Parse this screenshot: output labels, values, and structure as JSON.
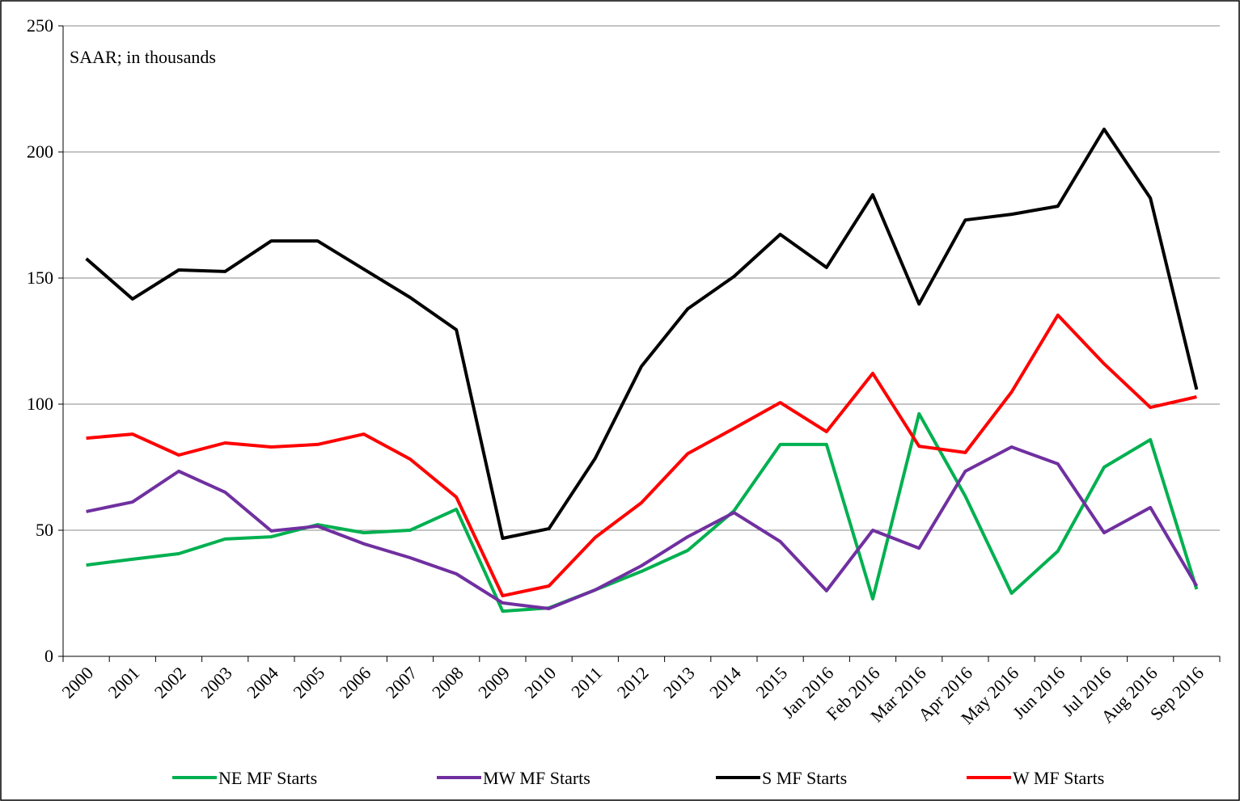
{
  "chart_data": {
    "type": "line",
    "annotation": "SAAR; in thousands",
    "categories": [
      "2000",
      "2001",
      "2002",
      "2003",
      "2004",
      "2005",
      "2006",
      "2007",
      "2008",
      "2009",
      "2010",
      "2011",
      "2012",
      "2013",
      "2014",
      "2015",
      "Jan 2016",
      "Feb 2016",
      "Mar 2016",
      "Apr 2016",
      "May 2016",
      "Jun 2016",
      "Jul 2016",
      "Aug 2016",
      "Sep 2016"
    ],
    "series": [
      {
        "name": "NE MF Starts",
        "color": "#00b050",
        "values": [
          36.2,
          38.5,
          40.7,
          46.5,
          47.4,
          52.2,
          49.0,
          50.0,
          58.3,
          17.9,
          19.2,
          26.3,
          33.7,
          42.0,
          57.7,
          84.0,
          84.0,
          22.8,
          96.2,
          63.5,
          25.0,
          41.7,
          75.0,
          85.9,
          26.6
        ]
      },
      {
        "name": "MW MF Starts",
        "color": "#7030a0",
        "values": [
          57.4,
          61.2,
          73.4,
          65.1,
          49.7,
          51.6,
          44.6,
          39.1,
          32.7,
          21.2,
          18.9,
          26.3,
          35.9,
          47.4,
          57.0,
          45.5,
          26.0,
          50.0,
          42.9,
          73.4,
          83.0,
          76.3,
          49.0,
          59.0,
          27.9
        ]
      },
      {
        "name": "S MF Starts",
        "color": "#000000",
        "values": [
          157.7,
          141.7,
          153.2,
          152.6,
          164.7,
          164.7,
          153.5,
          142.3,
          129.5,
          46.8,
          50.6,
          78.5,
          115.0,
          137.8,
          150.6,
          167.3,
          154.2,
          183.0,
          139.7,
          173.0,
          175.3,
          178.5,
          209.0,
          181.7,
          105.8
        ]
      },
      {
        "name": "W MF Starts",
        "color": "#ff0000",
        "values": [
          86.5,
          88.1,
          79.8,
          84.6,
          83.0,
          84.0,
          88.1,
          78.2,
          63.1,
          24.0,
          27.9,
          47.1,
          60.9,
          80.4,
          90.4,
          100.6,
          89.1,
          112.2,
          83.3,
          80.8,
          104.8,
          135.3,
          116.0,
          98.7,
          102.9
        ]
      }
    ],
    "ylim": [
      0,
      250
    ],
    "yticks": [
      0,
      50,
      100,
      150,
      200,
      250
    ],
    "grid": true,
    "legend": "bottom"
  }
}
